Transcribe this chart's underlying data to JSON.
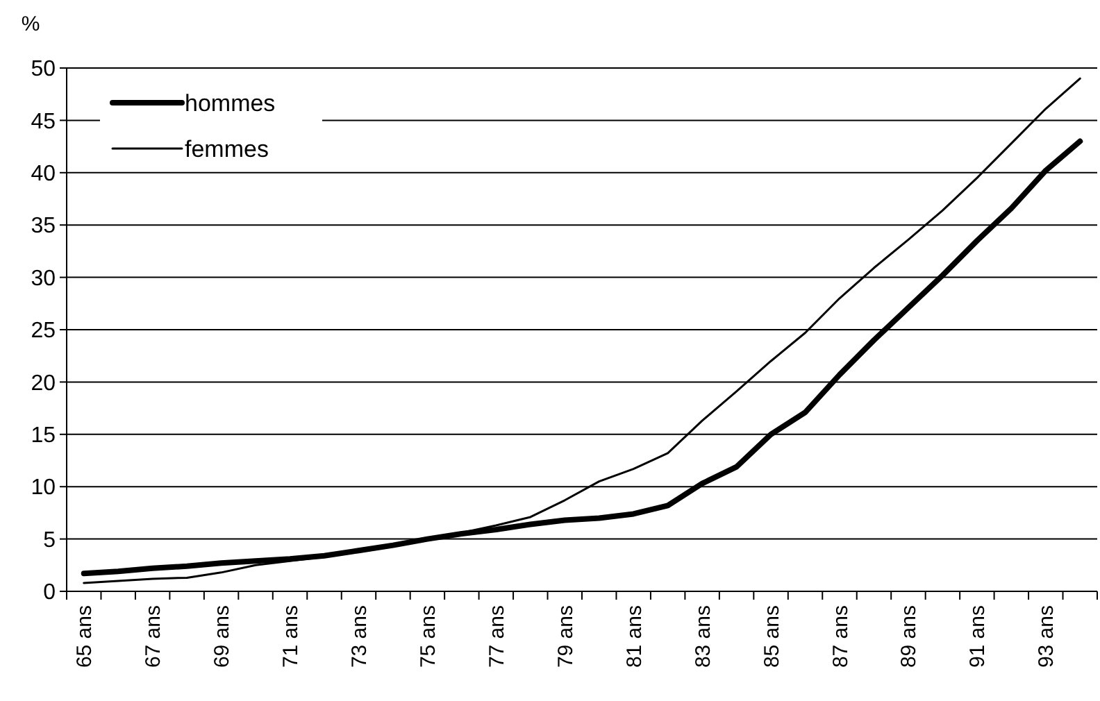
{
  "chart_data": {
    "type": "line",
    "ylabel": "%",
    "categories": [
      "65 ans",
      null,
      "67 ans",
      null,
      "69 ans",
      null,
      "71 ans",
      null,
      "73 ans",
      null,
      "75 ans",
      null,
      "77 ans",
      null,
      "79 ans",
      null,
      "81 ans",
      null,
      "83 ans",
      null,
      "85 ans",
      null,
      "87 ans",
      null,
      "89 ans",
      null,
      "91 ans",
      null,
      "93 ans",
      null
    ],
    "series": [
      {
        "name": "hommes",
        "color": "#000000",
        "values": [
          1.7,
          1.9,
          2.2,
          2.4,
          2.7,
          2.9,
          3.1,
          3.4,
          3.9,
          4.4,
          5.0,
          5.5,
          5.9,
          6.4,
          6.8,
          7.0,
          7.4,
          8.2,
          10.3,
          11.9,
          15.0,
          17.1,
          20.7,
          24.0,
          27.1,
          30.2,
          33.5,
          36.6,
          40.2,
          43.0
        ]
      },
      {
        "name": "femmes",
        "color": "#000000",
        "values": [
          0.8,
          1.0,
          1.2,
          1.3,
          1.8,
          2.5,
          2.9,
          3.3,
          3.8,
          4.4,
          5.0,
          5.6,
          6.3,
          7.1,
          8.7,
          10.5,
          11.7,
          13.2,
          16.3,
          19.1,
          22.0,
          24.7,
          28.0,
          30.9,
          33.6,
          36.4,
          39.5,
          42.8,
          46.1,
          49.0
        ]
      }
    ],
    "ylim": [
      0,
      50
    ],
    "yticks": [
      0,
      5,
      10,
      15,
      20,
      25,
      30,
      35,
      40,
      45,
      50
    ],
    "grid": "y",
    "legend": "top left",
    "marker": "none",
    "line_style": "solid"
  }
}
